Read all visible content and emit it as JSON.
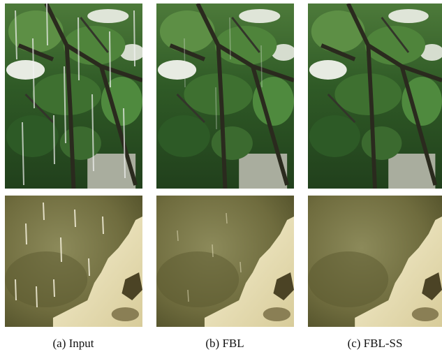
{
  "figure": {
    "panels": [
      {
        "caption": "(a) Input"
      },
      {
        "caption": "(b) FBL"
      },
      {
        "caption": "(c) FBL-SS"
      }
    ]
  }
}
